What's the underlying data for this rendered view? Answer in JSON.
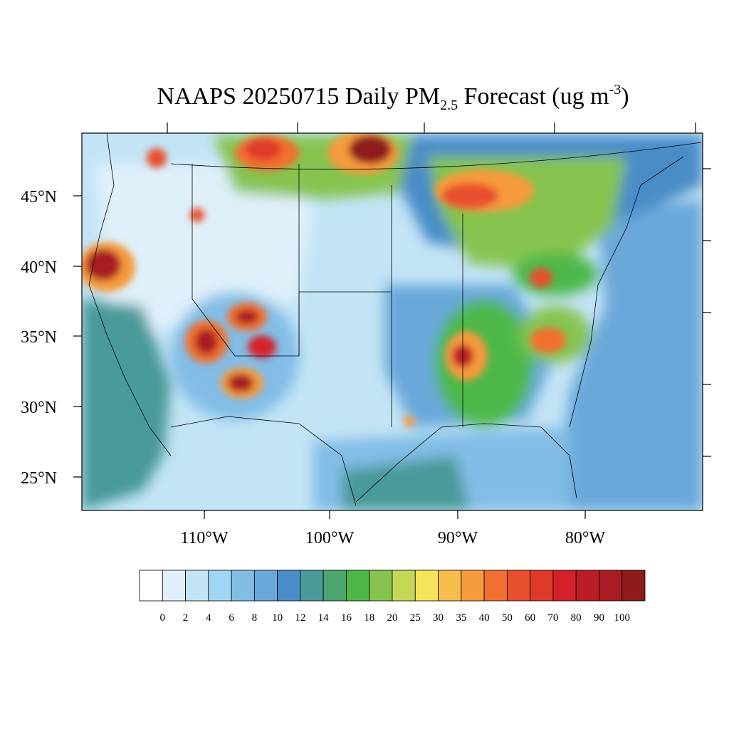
{
  "title": {
    "main": "NAAPS 20250715 Daily PM",
    "subscript": "2.5",
    "rest": " Forecast (ug m",
    "superscript": "-3",
    "close": ")"
  },
  "map": {
    "lat_labels": [
      "45°N",
      "40°N",
      "35°N",
      "30°N",
      "25°N"
    ],
    "lon_labels": [
      "110°W",
      "100°W",
      "90°W",
      "80°W"
    ]
  },
  "colorbar": {
    "labels": [
      0,
      2,
      4,
      6,
      8,
      10,
      12,
      14,
      16,
      18,
      20,
      25,
      30,
      35,
      40,
      50,
      60,
      70,
      80,
      90,
      100
    ],
    "colors": [
      "#ffffff",
      "#dff0fa",
      "#c2e4f6",
      "#9fd6f3",
      "#82bde6",
      "#6aa8da",
      "#4a8cc8",
      "#4a9a9a",
      "#4aa56e",
      "#4db848",
      "#86c44f",
      "#c4d756",
      "#f5e35a",
      "#f7bd4c",
      "#f69a3e",
      "#f2702f",
      "#e8502d",
      "#de3a2a",
      "#d42029",
      "#bb1d26",
      "#a81b22",
      "#8e1a1a"
    ]
  }
}
